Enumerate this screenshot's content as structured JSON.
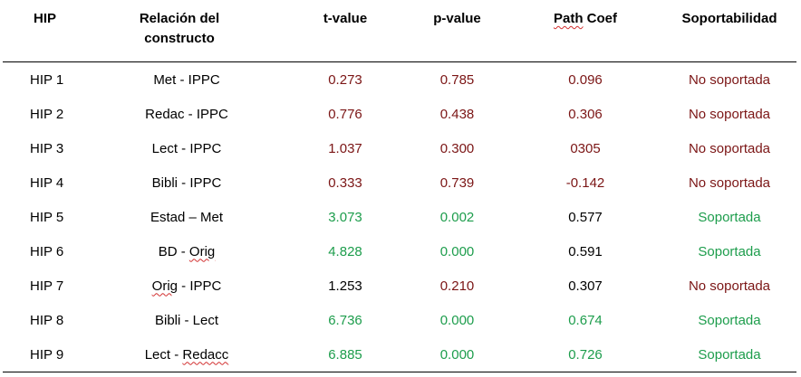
{
  "colors": {
    "not_supported": "#7b1515",
    "supported": "#1d9d4c",
    "neutral": "#000000"
  },
  "headers": {
    "hip": "HIP",
    "relacion_line1": "Relación del",
    "relacion_line2": "constructo",
    "tvalue": "t-value",
    "pvalue": "p-value",
    "path_coef_a": "Path",
    "path_coef_b": "Coef",
    "soportabilidad": "Soportabilidad"
  },
  "rows": [
    {
      "hip": "HIP 1",
      "rel_a": "Met - IPPC",
      "rel_b": "",
      "rel_c": "",
      "t": "0.273",
      "p": "0.785",
      "path": "0.096",
      "sop": "No soportada"
    },
    {
      "hip": "HIP 2",
      "rel_a": "Redac - IPPC",
      "rel_b": "",
      "rel_c": "",
      "t": "0.776",
      "p": "0.438",
      "path": "0.306",
      "sop": "No soportada"
    },
    {
      "hip": "HIP 3",
      "rel_a": "Lect - IPPC",
      "rel_b": "",
      "rel_c": "",
      "t": "1.037",
      "p": "0.300",
      "path": "0305",
      "sop": "No soportada"
    },
    {
      "hip": "HIP 4",
      "rel_a": "Bibli - IPPC",
      "rel_b": "",
      "rel_c": "",
      "t": "0.333",
      "p": "0.739",
      "path": "-0.142",
      "sop": "No soportada"
    },
    {
      "hip": "HIP 5",
      "rel_a": "Estad – Met",
      "rel_b": "",
      "rel_c": "",
      "t": "3.073",
      "p": "0.002",
      "path": "0.577",
      "sop": "Soportada"
    },
    {
      "hip": "HIP 6",
      "rel_a": "BD - ",
      "rel_b": "Orig",
      "rel_c": "",
      "t": "4.828",
      "p": "0.000",
      "path": "0.591",
      "sop": "Soportada"
    },
    {
      "hip": "HIP 7",
      "rel_a": "",
      "rel_b": "Orig",
      "rel_c": " - IPPC",
      "t": "1.253",
      "p": "0.210",
      "path": "0.307",
      "sop": "No soportada"
    },
    {
      "hip": "HIP 8",
      "rel_a": "Bibli - Lect",
      "rel_b": "",
      "rel_c": "",
      "t": "6.736",
      "p": "0.000",
      "path": "0.674",
      "sop": "Soportada"
    },
    {
      "hip": "HIP 9",
      "rel_a": "Lect - ",
      "rel_b": "Redacc",
      "rel_c": "",
      "t": "6.885",
      "p": "0.000",
      "path": "0.726",
      "sop": "Soportada"
    }
  ]
}
